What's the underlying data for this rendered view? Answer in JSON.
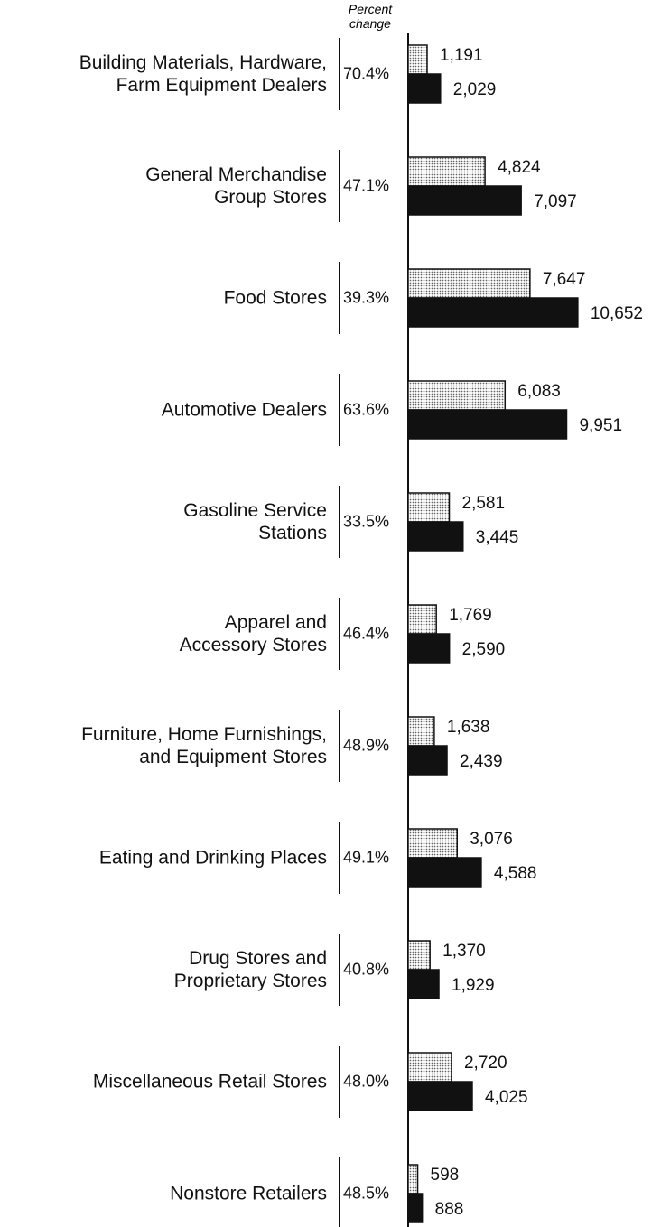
{
  "chart_data": {
    "type": "bar",
    "orientation": "horizontal",
    "percent_change_title": "Percent\nchange",
    "categories": [
      "Building Materials, Hardware,\nFarm Equipment Dealers",
      "General Merchandise\nGroup Stores",
      "Food Stores",
      "Automotive Dealers",
      "Gasoline Service\nStations",
      "Apparel and\nAccessory Stores",
      "Furniture, Home Furnishings,\nand Equipment Stores",
      "Eating and Drinking Places",
      "Drug Stores and\nProprietary Stores",
      "Miscellaneous Retail Stores",
      "Nonstore Retailers"
    ],
    "percent_change": [
      "70.4%",
      "47.1%",
      "39.3%",
      "63.6%",
      "33.5%",
      "46.4%",
      "48.9%",
      "49.1%",
      "40.8%",
      "48.0%",
      "48.5%"
    ],
    "series": [
      {
        "color": "#c4c4c4",
        "values": [
          1191,
          4824,
          7647,
          6083,
          2581,
          1769,
          1638,
          3076,
          1370,
          2720,
          598
        ],
        "value_labels": [
          "1,191",
          "4,824",
          "7,647",
          "6,083",
          "2,581",
          "1,769",
          "1,638",
          "3,076",
          "1,370",
          "2,720",
          "598"
        ]
      },
      {
        "color": "#111111",
        "values": [
          2029,
          7097,
          10652,
          9951,
          3445,
          2590,
          2439,
          4588,
          1929,
          4025,
          888
        ],
        "value_labels": [
          "2,029",
          "7,097",
          "10,652",
          "9,951",
          "3,445",
          "2,590",
          "2,439",
          "4,588",
          "1,929",
          "4,025",
          "888"
        ]
      }
    ],
    "xlim": [
      0,
      11000
    ]
  }
}
